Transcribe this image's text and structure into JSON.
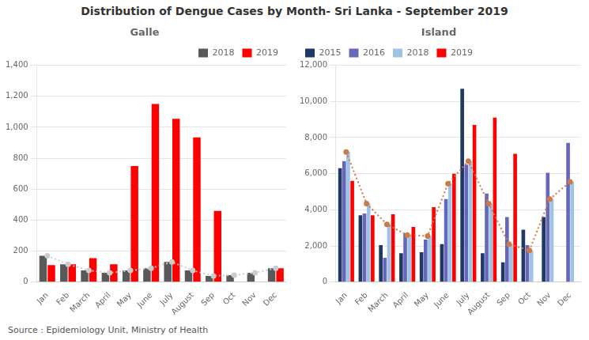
{
  "title": "Distribution of  Dengue Cases by Month- Sri Lanka - September 2019",
  "annotations": [
    "Source : Epidemiology Unit, Ministry of Health"
  ],
  "chart_data": [
    {
      "type": "bar",
      "annotations": [
        "Galle"
      ],
      "categories": [
        "Jan",
        "Feb",
        "March",
        "April",
        "May",
        "June",
        "July",
        "August",
        "Sep",
        "Oct",
        "Nov",
        "Dec"
      ],
      "series": [
        {
          "name": "2018",
          "type": "bar",
          "color": "#595959",
          "values": [
            170,
            115,
            75,
            60,
            75,
            90,
            130,
            75,
            40,
            45,
            60,
            90
          ]
        },
        {
          "name": "2019",
          "type": "bar",
          "color": "#ff0000",
          "values": [
            110,
            115,
            155,
            115,
            750,
            1150,
            1055,
            935,
            460,
            0,
            0,
            90
          ]
        },
        {
          "type": "line",
          "color": "#cccccc",
          "line_style": "dotted",
          "marker": "o",
          "values": [
            170,
            115,
            75,
            60,
            75,
            90,
            130,
            75,
            40,
            45,
            60,
            90
          ]
        }
      ],
      "ylim": [
        0,
        1400
      ],
      "yticks": [
        0,
        200,
        400,
        600,
        800,
        {
          "value": 1000,
          "label": "1,000"
        },
        {
          "value": 1200,
          "label": "1,200"
        },
        {
          "value": 1400,
          "label": "1,400"
        }
      ],
      "grid": true,
      "legend": "upper right"
    },
    {
      "type": "bar",
      "annotations": [
        "Island"
      ],
      "categories": [
        "Jan",
        "Feb",
        "March",
        "April",
        "May",
        "June",
        "July",
        "August",
        "Sep",
        "Oct",
        "Nov",
        "Dec"
      ],
      "series": [
        {
          "name": "2015",
          "type": "bar",
          "color": "#1f3864",
          "values": [
            6300,
            3700,
            2050,
            1600,
            1650,
            2100,
            10700,
            1600,
            1100,
            2900,
            3600,
            0
          ]
        },
        {
          "name": "2016",
          "type": "bar",
          "color": "#6666bb",
          "values": [
            6700,
            3800,
            1350,
            2700,
            2350,
            4600,
            6500,
            4900,
            3600,
            2050,
            6050,
            7700
          ]
        },
        {
          "name": "2018",
          "type": "bar",
          "color": "#9dc3e6",
          "values": [
            7200,
            4350,
            3200,
            2600,
            2550,
            5450,
            6700,
            4350,
            2100,
            1750,
            4600,
            5550
          ]
        },
        {
          "name": "2019",
          "type": "bar",
          "color": "#ff0000",
          "values": [
            5600,
            3700,
            3750,
            3050,
            4150,
            6000,
            8700,
            9100,
            7100,
            0,
            0,
            0
          ]
        },
        {
          "type": "line",
          "color": "#cc7a4a",
          "line_style": "dotted",
          "marker": "o",
          "values": [
            7200,
            4350,
            3200,
            2600,
            2550,
            5450,
            6700,
            4350,
            2100,
            1750,
            4600,
            5550
          ]
        }
      ],
      "ylim": [
        0,
        12000
      ],
      "yticks": [
        0,
        {
          "value": 2000,
          "label": "2,000"
        },
        {
          "value": 4000,
          "label": "4,000"
        },
        {
          "value": 6000,
          "label": "6,000"
        },
        {
          "value": 8000,
          "label": "8,000"
        },
        {
          "value": 10000,
          "label": "10,000"
        },
        {
          "value": 12000,
          "label": "12,000"
        }
      ],
      "grid": true,
      "legend": "upper left"
    }
  ]
}
